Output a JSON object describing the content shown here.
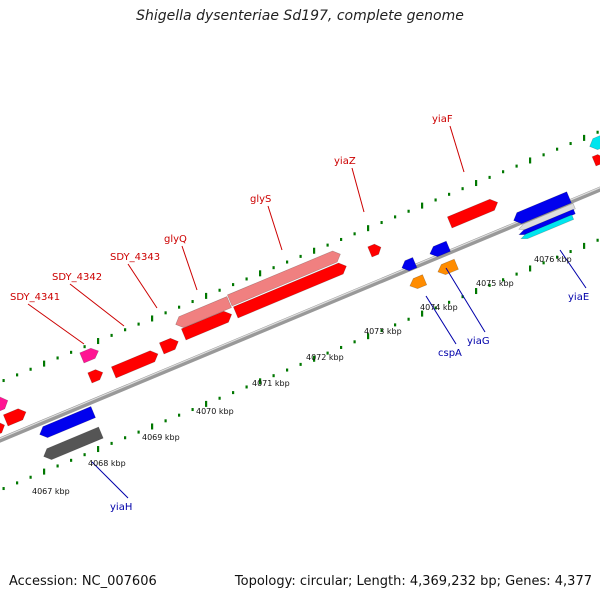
{
  "title": "Shigella dysenteriae Sd197, complete genome",
  "footer": {
    "accession": "Accession: NC_007606",
    "summary": "Topology: circular; Length: 4,369,232 bp; Genes: 4,377"
  },
  "colors": {
    "red": "#ff0000",
    "pink": "#f08080",
    "magenta": "#ff1493",
    "blue": "#0000ee",
    "gray": "#666666",
    "orange": "#ff8c00",
    "cyan": "#00e5ee",
    "tick_green": "#007700",
    "backbone": "#999999",
    "label_red": "#cc0000",
    "label_blue": "#0000aa"
  },
  "kbp_labels": [
    {
      "text": "4067 kbp"
    },
    {
      "text": "4068 kbp"
    },
    {
      "text": "4069 kbp"
    },
    {
      "text": "4070 kbp"
    },
    {
      "text": "4071 kbp"
    },
    {
      "text": "4072 kbp"
    },
    {
      "text": "4073 kbp"
    },
    {
      "text": "4074 kbp"
    },
    {
      "text": "4075 kbp"
    },
    {
      "text": "4076 kbp"
    }
  ],
  "gene_labels_top": [
    {
      "name": "SDY_4341"
    },
    {
      "name": "SDY_4342"
    },
    {
      "name": "SDY_4343"
    },
    {
      "name": "glyQ"
    },
    {
      "name": "glyS"
    },
    {
      "name": "yiaZ"
    },
    {
      "name": "yiaF"
    }
  ],
  "gene_labels_bottom": [
    {
      "name": "yiaH"
    },
    {
      "name": "cspA"
    },
    {
      "name": "yiaG"
    },
    {
      "name": "yiaE"
    }
  ]
}
